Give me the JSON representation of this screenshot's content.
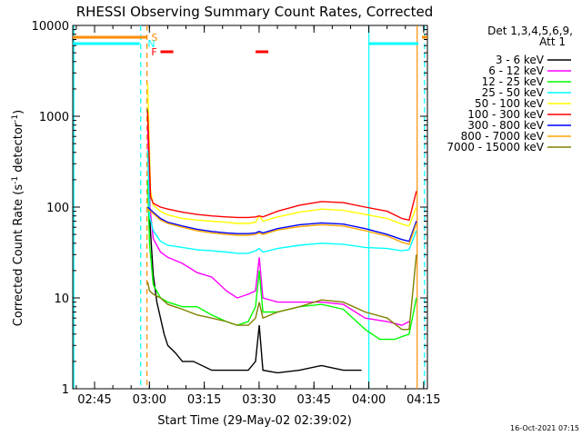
{
  "chart_data": {
    "type": "line",
    "title": "RHESSI Observing Summary Count Rates, Corrected",
    "xlabel": "Start Time (29-May-02 02:39:02)",
    "ylabel_main": "Corrected Count Rate (s",
    "ylabel_sup1": "-1",
    "ylabel_mid": " detector",
    "ylabel_sup2": "-1",
    "ylabel_end": ")",
    "yscale": "log",
    "ylim": [
      1,
      10000
    ],
    "xlim_minutes": [
      0,
      97
    ],
    "xlim": [
      "02:39:02",
      "04:16:02"
    ],
    "xticks": [
      {
        "label": "02:45",
        "minute": 5.97
      },
      {
        "label": "03:00",
        "minute": 20.97
      },
      {
        "label": "03:15",
        "minute": 35.97
      },
      {
        "label": "03:30",
        "minute": 50.97
      },
      {
        "label": "03:45",
        "minute": 65.97
      },
      {
        "label": "04:00",
        "minute": 80.97
      },
      {
        "label": "04:15",
        "minute": 95.97
      }
    ],
    "yticks": [
      {
        "label": "1",
        "value": 1
      },
      {
        "label": "10",
        "value": 10
      },
      {
        "label": "100",
        "value": 100
      },
      {
        "label": "1000",
        "value": 1000
      },
      {
        "label": "10000",
        "value": 10000
      }
    ],
    "legend_header": [
      "Det 1,3,4,5,6,9,",
      "Att 1"
    ],
    "legend_position": "right",
    "series": [
      {
        "name": "3 - 6 keV",
        "color": "#000000",
        "points": [
          [
            20.5,
            1200
          ],
          [
            21.2,
            60
          ],
          [
            22,
            18
          ],
          [
            23,
            9
          ],
          [
            24,
            6
          ],
          [
            25,
            4
          ],
          [
            26,
            3
          ],
          [
            28,
            2.5
          ],
          [
            30,
            2
          ],
          [
            33,
            2
          ],
          [
            38,
            1.6
          ],
          [
            44,
            1.6
          ],
          [
            48,
            1.6
          ],
          [
            50,
            2
          ],
          [
            51,
            5
          ],
          [
            52,
            1.6
          ],
          [
            56,
            1.5
          ],
          [
            62,
            1.6
          ],
          [
            68,
            1.8
          ],
          [
            74,
            1.6
          ],
          [
            79,
            1.6
          ]
        ]
      },
      {
        "name": "6 - 12 keV",
        "color": "#ff00ff",
        "points": [
          [
            20.5,
            800
          ],
          [
            21,
            110
          ],
          [
            22,
            45
          ],
          [
            24,
            32
          ],
          [
            26,
            28
          ],
          [
            30,
            24
          ],
          [
            34,
            19
          ],
          [
            38,
            17
          ],
          [
            42,
            12
          ],
          [
            45,
            10
          ],
          [
            48,
            11
          ],
          [
            50,
            12
          ],
          [
            51,
            28
          ],
          [
            52,
            10
          ],
          [
            56,
            9
          ],
          [
            62,
            9
          ],
          [
            68,
            9
          ],
          [
            74,
            8.5
          ],
          [
            80,
            6
          ],
          [
            86,
            5.5
          ],
          [
            90,
            5
          ],
          [
            92,
            5.5
          ]
        ]
      },
      {
        "name": "12 - 25 keV",
        "color": "#00ff00",
        "points": [
          [
            20.5,
            200
          ],
          [
            21,
            40
          ],
          [
            22,
            14
          ],
          [
            24,
            10
          ],
          [
            26,
            9
          ],
          [
            30,
            8
          ],
          [
            34,
            8
          ],
          [
            38,
            6.5
          ],
          [
            42,
            5.5
          ],
          [
            45,
            5
          ],
          [
            48,
            5.5
          ],
          [
            50,
            8
          ],
          [
            51,
            20
          ],
          [
            52,
            7
          ],
          [
            56,
            7
          ],
          [
            62,
            8
          ],
          [
            68,
            8.5
          ],
          [
            74,
            7.5
          ],
          [
            80,
            4.5
          ],
          [
            84,
            3.5
          ],
          [
            88,
            3.5
          ],
          [
            92,
            4
          ],
          [
            94,
            10
          ]
        ]
      },
      {
        "name": "25 - 50 keV",
        "color": "#00ffff",
        "points": [
          [
            20.5,
            420
          ],
          [
            21,
            80
          ],
          [
            22,
            55
          ],
          [
            24,
            42
          ],
          [
            26,
            38
          ],
          [
            30,
            36
          ],
          [
            34,
            34
          ],
          [
            38,
            33
          ],
          [
            42,
            32
          ],
          [
            45,
            31
          ],
          [
            48,
            31
          ],
          [
            50,
            33
          ],
          [
            51,
            35
          ],
          [
            52,
            32
          ],
          [
            56,
            35
          ],
          [
            62,
            38
          ],
          [
            68,
            40
          ],
          [
            74,
            39
          ],
          [
            80,
            36
          ],
          [
            86,
            35
          ],
          [
            90,
            33
          ],
          [
            92,
            34
          ],
          [
            94,
            55
          ]
        ]
      },
      {
        "name": "50 - 100 keV",
        "color": "#ffff00",
        "points": [
          [
            20.5,
            2300
          ],
          [
            21.3,
            150
          ],
          [
            22,
            105
          ],
          [
            24,
            90
          ],
          [
            26,
            82
          ],
          [
            30,
            75
          ],
          [
            34,
            72
          ],
          [
            38,
            70
          ],
          [
            42,
            68
          ],
          [
            45,
            66
          ],
          [
            48,
            66
          ],
          [
            50,
            68
          ],
          [
            51,
            80
          ],
          [
            52,
            70
          ],
          [
            56,
            78
          ],
          [
            62,
            88
          ],
          [
            68,
            95
          ],
          [
            74,
            92
          ],
          [
            80,
            83
          ],
          [
            86,
            75
          ],
          [
            90,
            65
          ],
          [
            92,
            62
          ],
          [
            94,
            100
          ]
        ]
      },
      {
        "name": "100 - 300 keV",
        "color": "#ff0000",
        "points": [
          [
            20.5,
            1100
          ],
          [
            21.3,
            130
          ],
          [
            22,
            110
          ],
          [
            24,
            100
          ],
          [
            26,
            95
          ],
          [
            30,
            88
          ],
          [
            34,
            83
          ],
          [
            38,
            80
          ],
          [
            42,
            78
          ],
          [
            45,
            77
          ],
          [
            48,
            77
          ],
          [
            50,
            78
          ],
          [
            51,
            80
          ],
          [
            52,
            78
          ],
          [
            56,
            90
          ],
          [
            62,
            105
          ],
          [
            68,
            115
          ],
          [
            74,
            112
          ],
          [
            80,
            100
          ],
          [
            86,
            90
          ],
          [
            90,
            75
          ],
          [
            92,
            72
          ],
          [
            94,
            150
          ]
        ]
      },
      {
        "name": "300 - 800 keV",
        "color": "#0000ff",
        "points": [
          [
            20.5,
            100
          ],
          [
            22,
            88
          ],
          [
            24,
            75
          ],
          [
            26,
            68
          ],
          [
            30,
            62
          ],
          [
            34,
            57
          ],
          [
            38,
            54
          ],
          [
            42,
            52
          ],
          [
            45,
            51
          ],
          [
            48,
            51
          ],
          [
            50,
            52
          ],
          [
            51,
            54
          ],
          [
            52,
            52
          ],
          [
            56,
            58
          ],
          [
            62,
            64
          ],
          [
            68,
            67
          ],
          [
            74,
            65
          ],
          [
            80,
            58
          ],
          [
            86,
            50
          ],
          [
            90,
            44
          ],
          [
            92,
            42
          ],
          [
            94,
            70
          ]
        ]
      },
      {
        "name": "800 - 7000 keV",
        "color": "#ffa500",
        "points": [
          [
            20.5,
            95
          ],
          [
            22,
            85
          ],
          [
            24,
            72
          ],
          [
            26,
            66
          ],
          [
            30,
            60
          ],
          [
            34,
            55
          ],
          [
            38,
            52
          ],
          [
            42,
            50
          ],
          [
            45,
            49
          ],
          [
            48,
            49
          ],
          [
            50,
            50
          ],
          [
            51,
            52
          ],
          [
            52,
            50
          ],
          [
            56,
            56
          ],
          [
            62,
            61
          ],
          [
            68,
            64
          ],
          [
            74,
            62
          ],
          [
            80,
            55
          ],
          [
            86,
            48
          ],
          [
            90,
            41
          ],
          [
            92,
            39
          ],
          [
            94,
            66
          ]
        ]
      },
      {
        "name": "7000 - 15000 keV",
        "color": "#808000",
        "points": [
          [
            20.5,
            15
          ],
          [
            21,
            12
          ],
          [
            22,
            11
          ],
          [
            24,
            10
          ],
          [
            26,
            8.5
          ],
          [
            30,
            7.5
          ],
          [
            34,
            6.5
          ],
          [
            38,
            6
          ],
          [
            42,
            5.5
          ],
          [
            45,
            5
          ],
          [
            48,
            5
          ],
          [
            50,
            6
          ],
          [
            51,
            9
          ],
          [
            52,
            6
          ],
          [
            56,
            7
          ],
          [
            62,
            8
          ],
          [
            68,
            9.5
          ],
          [
            74,
            9
          ],
          [
            80,
            7
          ],
          [
            86,
            6
          ],
          [
            90,
            4.5
          ],
          [
            92,
            4.5
          ],
          [
            94,
            30
          ]
        ]
      }
    ],
    "flags": [
      {
        "label": "S",
        "color": "#ff8c00",
        "label_minute": 20.5,
        "spans": [
          [
            0,
            20.3
          ],
          [
            95.5,
            97
          ]
        ]
      },
      {
        "label": "N",
        "color": "#00ffff",
        "label_minute": 19.5,
        "spans": [
          [
            0,
            18.3
          ],
          [
            81,
            94.5
          ]
        ]
      },
      {
        "label": "F",
        "color": "#ff0000",
        "label_minute": 20.5,
        "spans": [
          [
            24,
            27.5
          ],
          [
            50,
            53.5
          ]
        ]
      }
    ],
    "vertical_lines": [
      {
        "minute": 18.6,
        "color": "#00ffff",
        "style": "dashed"
      },
      {
        "minute": 20.3,
        "color": "#ff8c00",
        "style": "dashed"
      },
      {
        "minute": 81,
        "color": "#00ffff",
        "style": "solid"
      },
      {
        "minute": 94.2,
        "color": "#ff8c00",
        "style": "solid"
      },
      {
        "minute": 96.2,
        "color": "#00ffff",
        "style": "dashed"
      },
      {
        "minute": 0.3,
        "color": "#00ffff",
        "style": "solid"
      }
    ]
  },
  "footer_timestamp": "16-Oct-2021 07:15"
}
